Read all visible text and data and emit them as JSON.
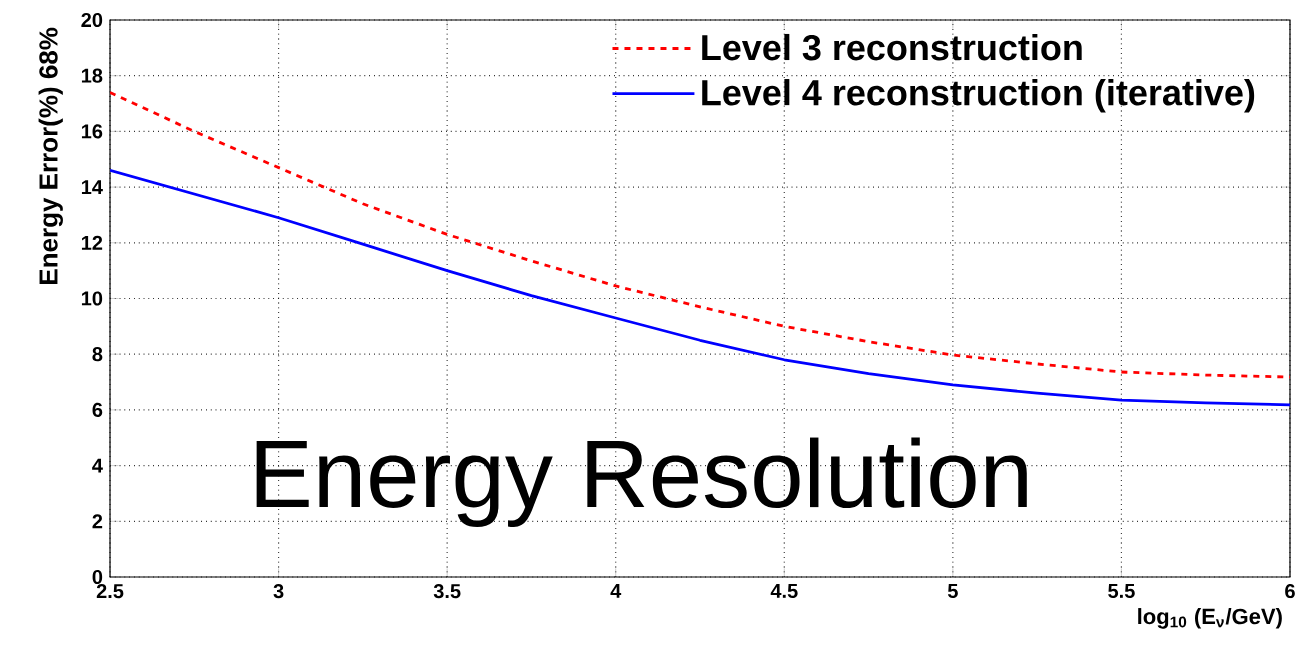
{
  "chart_data": {
    "type": "line",
    "xlabel": "log$_{10}$ (E$_{ν}$/GeV)",
    "ylabel": "Energy Error(%) 68%",
    "annotations": [
      "Energy Resolution"
    ],
    "x": [
      2.5,
      2.75,
      3,
      3.25,
      3.5,
      3.75,
      4,
      4.25,
      4.5,
      4.75,
      5,
      5.25,
      5.5,
      5.75,
      6
    ],
    "series": [
      {
        "name": "Level 3 reconstruction",
        "color": "#ff0000",
        "line_style": "dashed",
        "values": [
          17.4,
          16.0,
          14.7,
          13.4,
          12.3,
          11.35,
          10.45,
          9.7,
          9.0,
          8.45,
          7.97,
          7.65,
          7.36,
          7.25,
          7.18
        ]
      },
      {
        "name": "Level 4 reconstruction (iterative)",
        "color": "#0000ff",
        "line_style": "solid",
        "values": [
          14.6,
          13.75,
          12.9,
          11.95,
          11.0,
          10.1,
          9.3,
          8.5,
          7.8,
          7.3,
          6.9,
          6.6,
          6.35,
          6.25,
          6.18
        ]
      }
    ],
    "xlim": [
      2.5,
      6
    ],
    "ylim": [
      0,
      20
    ],
    "xticks": [
      2.5,
      3,
      3.5,
      4,
      4.5,
      5,
      5.5,
      6
    ],
    "yticks": [
      0,
      2,
      4,
      6,
      8,
      10,
      12,
      14,
      16,
      18,
      20
    ],
    "grid": true,
    "legend": "top right"
  }
}
